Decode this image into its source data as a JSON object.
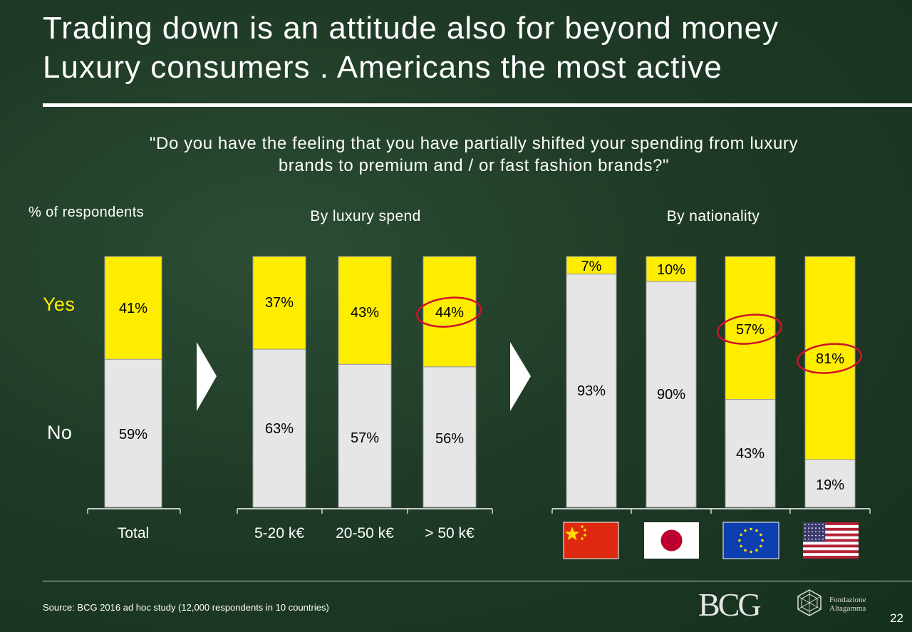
{
  "title": {
    "line1": "Trading down is an attitude also for beyond money",
    "line2": "Luxury consumers . Americans the most active"
  },
  "question": {
    "line1": "\"Do you have the feeling that you have partially shifted your spending from luxury",
    "line2": "brands to premium and / or fast fashion brands?\""
  },
  "labels": {
    "respondents": "% of respondents",
    "by_spend": "By luxury spend",
    "by_nationality": "By nationality",
    "yes": "Yes",
    "no": "No"
  },
  "colors": {
    "yes": "#ffed00",
    "no": "#e6e6e6",
    "highlight": "#d0102a"
  },
  "chart_data": {
    "type": "bar",
    "stacked": true,
    "ylim": [
      0,
      100
    ],
    "unit": "%",
    "groups": [
      {
        "name": "",
        "categories": [
          "Total"
        ],
        "series": [
          {
            "name": "No",
            "values": [
              59
            ]
          },
          {
            "name": "Yes",
            "values": [
              41
            ]
          }
        ]
      },
      {
        "name": "By luxury spend",
        "categories": [
          "5-20 k€",
          "20-50 k€",
          "> 50 k€"
        ],
        "series": [
          {
            "name": "No",
            "values": [
              63,
              57,
              56
            ]
          },
          {
            "name": "Yes",
            "values": [
              37,
              43,
              44
            ]
          }
        ]
      },
      {
        "name": "By nationality",
        "categories": [
          "China",
          "Japan",
          "EU",
          "USA"
        ],
        "series": [
          {
            "name": "No",
            "values": [
              93,
              90,
              43,
              19
            ]
          },
          {
            "name": "Yes",
            "values": [
              7,
              10,
              57,
              81
            ]
          }
        ]
      }
    ],
    "highlighted": [
      "> 50 k€",
      "EU",
      "USA"
    ],
    "nationality_icons": [
      "china-flag-icon",
      "japan-flag-icon",
      "eu-flag-icon",
      "usa-flag-icon"
    ]
  },
  "footer": {
    "source": "Source: BCG 2016 ad hoc study (12,000 respondents in 10 countries)",
    "page": "22",
    "logo_bcg": "BCG",
    "logo_alta_line1": "Fondazione",
    "logo_alta_line2": "Altagamma"
  }
}
